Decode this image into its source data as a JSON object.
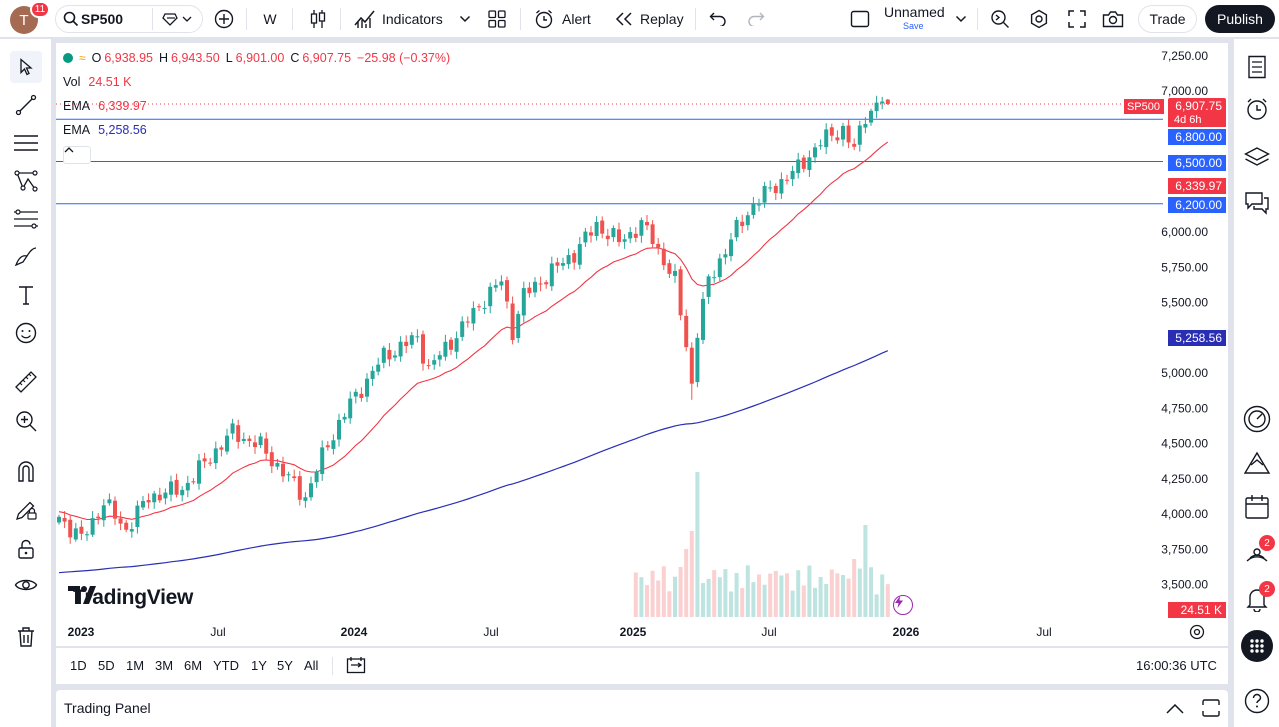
{
  "header": {
    "avatar_letter": "T",
    "notifications": "11",
    "symbol": "SP500",
    "interval": "W",
    "indicators_label": "Indicators",
    "alert_label": "Alert",
    "replay_label": "Replay",
    "layout_name": "Unnamed",
    "layout_save": "Save",
    "trade_label": "Trade",
    "publish_label": "Publish"
  },
  "legend": {
    "ohlc": {
      "o_key": "O",
      "o": "6,938.95",
      "h_key": "H",
      "h": "6,943.50",
      "l_key": "L",
      "l": "6,901.00",
      "c_key": "C",
      "c": "6,907.75",
      "change": "−25.98 (−0.37%)"
    },
    "vol_key": "Vol",
    "vol": "24.51 K",
    "ema1_key": "EMA",
    "ema1": "6,339.97",
    "ema2_key": "EMA",
    "ema2": "5,258.56"
  },
  "price_labels": {
    "symbol_tag": "SP500",
    "last": "6,907.75",
    "countdown": "4d 6h",
    "line1": "6,800.00",
    "line2": "6,500.00",
    "ema1": "6,339.97",
    "line3": "6,200.00",
    "ema2": "5,258.56",
    "volume": "24.51 K"
  },
  "colors": {
    "up": "#26a69a",
    "down": "#ef5350",
    "ema_fast": "#f23645",
    "ema_slow": "#2a2eb5",
    "hline": "#2962ff",
    "accent": "#2962ff"
  },
  "chart_data": {
    "type": "candlestick",
    "symbol": "SP500",
    "interval": "W",
    "y_ticks": [
      "7,250.00",
      "7,000.00",
      "6,000.00",
      "5,750.00",
      "5,500.00",
      "5,000.00",
      "4,750.00",
      "4,500.00",
      "4,250.00",
      "4,000.00",
      "3,750.00",
      "3,500.00"
    ],
    "x_ticks": [
      "2023",
      "Jul",
      "2024",
      "Jul",
      "2025",
      "Jul",
      "2026",
      "Jul"
    ],
    "ylim": [
      3300,
      7300
    ],
    "horizontal_lines": [
      6800,
      6500,
      6200
    ],
    "ema_fast_last": 6339.97,
    "ema_slow_last": 5258.56,
    "last_ohlc": {
      "open": 6938.95,
      "high": 6943.5,
      "low": 6901.0,
      "close": 6907.75
    },
    "path_points": [
      {
        "week": 0,
        "close": 3980
      },
      {
        "week": 4,
        "close": 3820
      },
      {
        "week": 8,
        "close": 4080
      },
      {
        "week": 12,
        "close": 3890
      },
      {
        "week": 16,
        "close": 4120
      },
      {
        "week": 22,
        "close": 4180
      },
      {
        "week": 28,
        "close": 4450
      },
      {
        "week": 31,
        "close": 4580
      },
      {
        "week": 36,
        "close": 4480
      },
      {
        "week": 41,
        "close": 4250
      },
      {
        "week": 44,
        "close": 4120
      },
      {
        "week": 48,
        "close": 4500
      },
      {
        "week": 52,
        "close": 4780
      },
      {
        "week": 58,
        "close": 5120
      },
      {
        "week": 64,
        "close": 5250
      },
      {
        "week": 66,
        "close": 5030
      },
      {
        "week": 72,
        "close": 5320
      },
      {
        "week": 76,
        "close": 5530
      },
      {
        "week": 79,
        "close": 5650
      },
      {
        "week": 81,
        "close": 5300
      },
      {
        "week": 83,
        "close": 5550
      },
      {
        "week": 88,
        "close": 5720
      },
      {
        "week": 92,
        "close": 5850
      },
      {
        "week": 96,
        "close": 6050
      },
      {
        "week": 100,
        "close": 5930
      },
      {
        "week": 104,
        "close": 6050
      },
      {
        "week": 106,
        "close": 5950
      },
      {
        "week": 108,
        "close": 5800
      },
      {
        "week": 110,
        "close": 5650
      },
      {
        "week": 112,
        "close": 5200
      },
      {
        "week": 113,
        "close": 4920
      },
      {
        "week": 114,
        "close": 5300
      },
      {
        "week": 116,
        "close": 5650
      },
      {
        "week": 120,
        "close": 5950
      },
      {
        "week": 124,
        "close": 6200
      },
      {
        "week": 128,
        "close": 6330
      },
      {
        "week": 132,
        "close": 6450
      },
      {
        "week": 136,
        "close": 6640
      },
      {
        "week": 140,
        "close": 6730
      },
      {
        "week": 142,
        "close": 6580
      },
      {
        "week": 144,
        "close": 6830
      },
      {
        "week": 147,
        "close": 6940
      },
      {
        "week": 148,
        "close": 6908
      }
    ],
    "volume_last": "24.51 K",
    "time_label": "16:00:36 UTC"
  },
  "left_toolbar": [
    "cursor",
    "trend-line",
    "horizontal-lines",
    "pattern",
    "fib",
    "brush",
    "text",
    "emoji",
    "ruler",
    "zoom-in",
    "magnet",
    "pencil-lock",
    "lock",
    "eye",
    "trash"
  ],
  "range_bar": {
    "ranges": [
      "1D",
      "5D",
      "1M",
      "3M",
      "6M",
      "YTD",
      "1Y",
      "5Y",
      "All"
    ],
    "time": "16:00:36 UTC"
  },
  "trading_panel": {
    "label": "Trading Panel"
  },
  "right_badges": {
    "signals": "2",
    "notifications": "2"
  },
  "watermark": "TradingView"
}
